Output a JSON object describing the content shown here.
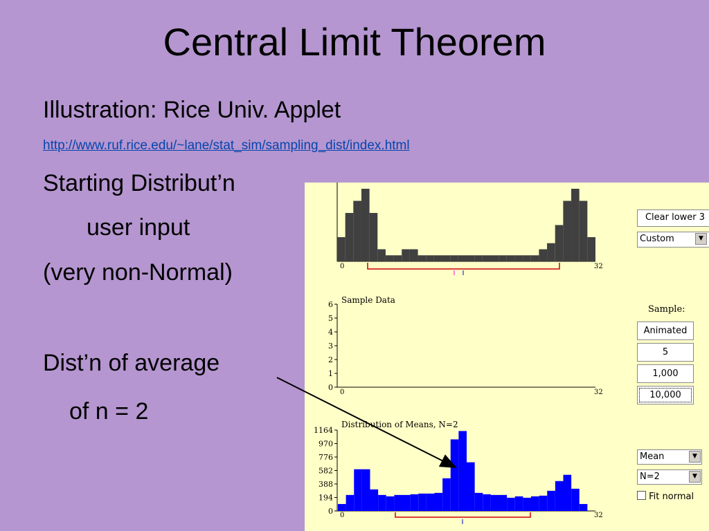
{
  "title": "Central Limit Theorem",
  "bullets": {
    "illustration": "Illustration:  Rice Univ. Applet",
    "link": "http://www.ruf.rice.edu/~lane/stat_sim/sampling_dist/index.html",
    "starting": "Starting Distribut’n",
    "user_input": "user input",
    "non_normal": "(very non-Normal)",
    "dist_avg": "Dist’n of average",
    "of_n": "of n = 2"
  },
  "applet": {
    "colors": {
      "background": "#ffffc8",
      "population": "#404040",
      "means": "#0000ff",
      "range": "#cc0000"
    },
    "controls": {
      "clear_button": "Clear lower 3",
      "distribution_select": "Custom",
      "sample_label": "Sample:",
      "animated_button": "Animated",
      "five_button": "5",
      "thousand_button": "1,000",
      "tenthousand_button": "10,000",
      "statistic_select": "Mean",
      "n_select": "N=2",
      "fit_normal_label": "Fit normal"
    },
    "population_chart": {
      "x_min_label": "0",
      "x_max_label": "32",
      "x_range": [
        0,
        32
      ],
      "values": [
        2,
        4,
        5,
        6,
        4,
        1,
        0.5,
        0.5,
        1,
        1,
        0.5,
        0.5,
        0.5,
        0.5,
        0.5,
        0.5,
        0.5,
        0.5,
        0.5,
        0.5,
        0.5,
        0.5,
        0.5,
        0.5,
        0.5,
        1,
        1.5,
        3,
        5,
        6,
        5,
        2
      ]
    },
    "sample_chart": {
      "title": "Sample Data",
      "y_ticks": [
        "0",
        "1",
        "2",
        "3",
        "4",
        "5",
        "6"
      ],
      "x_min_label": "0",
      "x_max_label": "32"
    },
    "means_chart": {
      "title": "Distribution of Means, N=2",
      "y_ticks": [
        "0",
        "194",
        "388",
        "582",
        "776",
        "970",
        "1164"
      ],
      "y_max": 1164,
      "x_min_label": "0",
      "x_max_label": "32",
      "values": [
        100,
        230,
        600,
        600,
        310,
        230,
        210,
        230,
        230,
        240,
        250,
        250,
        260,
        470,
        1030,
        1150,
        700,
        260,
        240,
        230,
        230,
        190,
        210,
        190,
        210,
        220,
        290,
        430,
        520,
        320,
        100,
        0
      ]
    }
  }
}
